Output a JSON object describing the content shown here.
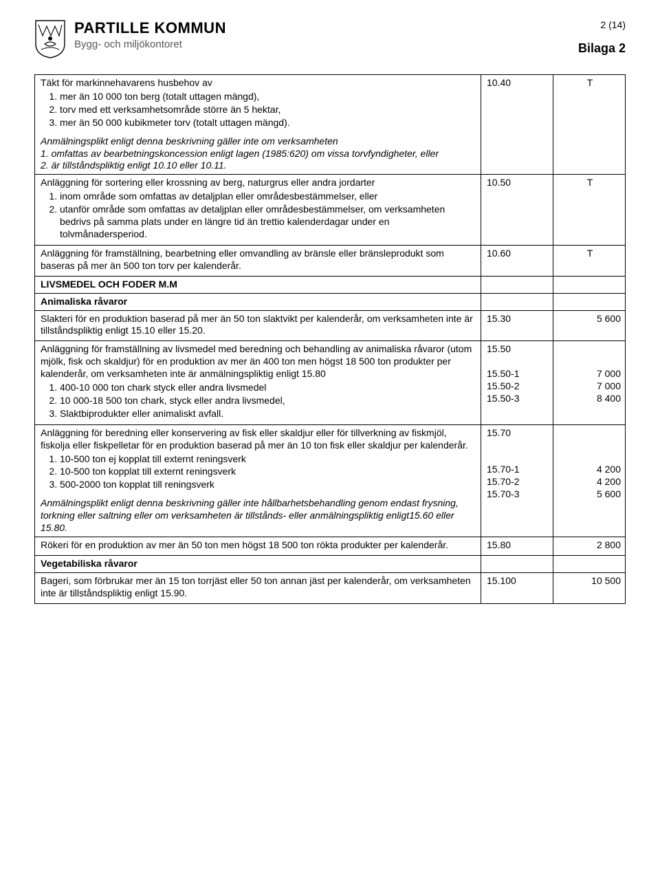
{
  "header": {
    "kommun": "PARTILLE KOMMUN",
    "department": "Bygg- och miljökontoret",
    "page_number": "2 (14)",
    "attachment": "Bilaga 2"
  },
  "rows": [
    {
      "desc": {
        "lead": "Täkt för markinnehavarens husbehov av",
        "list": [
          "mer än 10 000 ton berg (totalt uttagen mängd),",
          "torv med ett verksamhetsområde större än 5 hektar,",
          "mer än 50 000 kubikmeter torv (totalt uttagen mängd)."
        ],
        "trail1_italic": "Anmälningsplikt enligt denna beskrivning gäller inte om verksamheten",
        "trail2_italic": "1. omfattas av bearbetningskoncession enligt lagen (1985:620) om vissa torvfyndigheter, eller",
        "trail3_italic": "2. är tillståndspliktig enligt 10.10 eller 10.11."
      },
      "code": "10.40",
      "fee": "T"
    },
    {
      "desc": {
        "lead": "Anläggning för sortering eller krossning av berg, naturgrus eller andra jordarter",
        "list": [
          "inom område som omfattas av detaljplan eller områdesbestämmelser, eller",
          "utanför område som omfattas av detaljplan eller områdesbestämmelser, om verksamheten bedrivs på samma plats under en längre tid än trettio kalenderdagar under en tolvmånadersperiod."
        ]
      },
      "code": "10.50",
      "fee": "T"
    },
    {
      "desc": {
        "lead": "Anläggning för framställning, bearbetning eller omvandling av bränsle eller bränsleprodukt som baseras på mer än 500 ton torv per kalenderår."
      },
      "code": "10.60",
      "fee": "T"
    },
    {
      "section": "LIVSMEDEL OCH FODER M.M"
    },
    {
      "subheading": "Animaliska råvaror"
    },
    {
      "desc": {
        "lead": "Slakteri för en produktion baserad på mer än 50 ton slaktvikt per kalenderår, om verksamheten inte är tillståndspliktig enligt 15.10 eller 15.20."
      },
      "code": "15.30",
      "fee": "5 600"
    },
    {
      "desc": {
        "lead": "Anläggning för framställning av livsmedel med beredning och behandling av animaliska råvaror (utom mjölk, fisk och skaldjur) för en produktion av mer än 400 ton men högst 18 500 ton produkter per kalenderår, om verksamheten inte är anmälningspliktig enligt 15.80",
        "list": [
          "400-10 000 ton chark styck eller andra livsmedel",
          "10 000-18 500 ton chark, styck eller andra livsmedel,",
          "Slaktbiprodukter eller animaliskt avfall."
        ]
      },
      "code_multi": [
        "15.50",
        "",
        "15.50-1",
        "15.50-2",
        "15.50-3"
      ],
      "fee_multi": [
        "",
        "",
        "7 000",
        "7 000",
        "8 400"
      ]
    },
    {
      "desc": {
        "lead": "Anläggning för beredning eller konservering av fisk eller skaldjur eller för tillverkning av fiskmjöl, fiskolja eller fiskpelletar för en produktion baserad på mer än 10 ton fisk eller skaldjur per kalenderår.",
        "list": [
          "10-500 ton ej kopplat till externt reningsverk",
          "10-500 ton kopplat till externt reningsverk",
          "500-2000 ton kopplat till reningsverk"
        ],
        "trail1_italic": "Anmälningsplikt enligt denna beskrivning gäller inte hållbarhetsbehandling genom endast frysning, torkning eller saltning eller om verksamheten är tillstånds- eller anmälningspliktig enligt15.60 eller 15.80."
      },
      "code_multi": [
        "15.70",
        "",
        "",
        "15.70-1",
        "15.70-2",
        "15.70-3"
      ],
      "fee_multi": [
        "",
        "",
        "",
        "4 200",
        "4 200",
        "5 600"
      ]
    },
    {
      "desc": {
        "lead": "Rökeri för en produktion av mer än 50 ton men högst 18 500 ton rökta produkter per kalenderår."
      },
      "code": "15.80",
      "fee": "2 800"
    },
    {
      "subheading": "Vegetabiliska råvaror"
    },
    {
      "desc": {
        "lead": "Bageri, som förbrukar mer än 15 ton torrjäst eller 50 ton annan jäst per kalenderår, om verksamheten inte är tillståndspliktig enligt 15.90."
      },
      "code": "15.100",
      "fee": "10 500"
    }
  ]
}
